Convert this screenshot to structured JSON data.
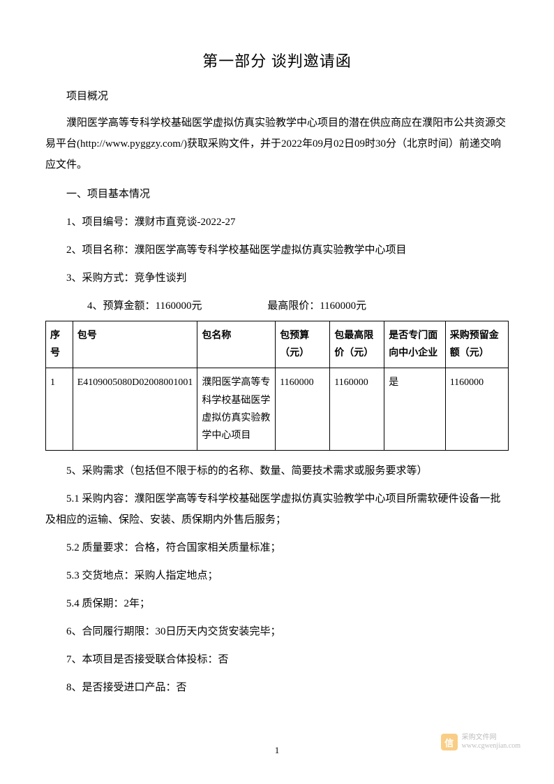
{
  "title": "第一部分 谈判邀请函",
  "subtitle": "项目概况",
  "intro": "濮阳医学高等专科学校基础医学虚拟仿真实验教学中心项目的潜在供应商应在濮阳市公共资源交易平台(http://www.pyggzy.com/)获取采购文件，并于2022年09月02日09时30分（北京时间）前递交响应文件。",
  "section1_heading": "一、项目基本情况",
  "item1": "1、项目编号：濮财市直竞谈-2022-27",
  "item2": "2、项目名称：濮阳医学高等专科学校基础医学虚拟仿真实验教学中心项目",
  "item3": "3、采购方式：竞争性谈判",
  "item4_budget": "4、预算金额：1160000元",
  "item4_max": "最高限价：1160000元",
  "table": {
    "headers": [
      "序号",
      "包号",
      "包名称",
      "包预算（元）",
      "包最高限价（元）",
      "是否专门面向中小企业",
      "采购预留金额（元）"
    ],
    "rows": [
      [
        "1",
        "E4109005080D02008001001",
        "濮阳医学高等专科学校基础医学虚拟仿真实验教学中心项目",
        "1160000",
        "1160000",
        "是",
        "1160000"
      ]
    ],
    "border_color": "#000000",
    "font_size": 14
  },
  "item5": "5、采购需求（包括但不限于标的的名称、数量、简要技术需求或服务要求等）",
  "item5_1": "5.1 采购内容：濮阳医学高等专科学校基础医学虚拟仿真实验教学中心项目所需软硬件设备一批及相应的运输、保险、安装、质保期内外售后服务；",
  "item5_2": "5.2 质量要求：合格，符合国家相关质量标准；",
  "item5_3": "5.3 交货地点：采购人指定地点；",
  "item5_4": "5.4 质保期：2年；",
  "item6": "6、合同履行期限：30日历天内交货安装完毕；",
  "item7": "7、本项目是否接受联合体投标：否",
  "item8": "8、是否接受进口产品：否",
  "page_number": "1",
  "watermark": {
    "badge_text": "信",
    "line1": "采购文件网",
    "line2": "www.cgwenjian.com",
    "badge_color": "#f5a623"
  }
}
